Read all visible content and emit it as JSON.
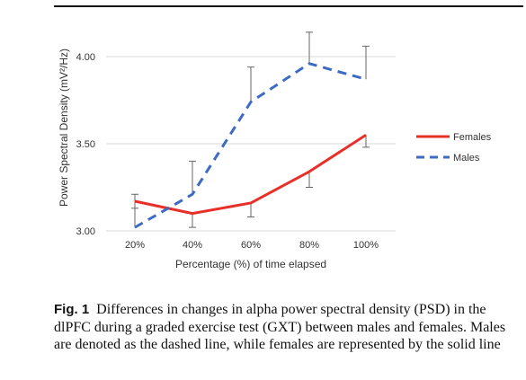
{
  "chart_data": {
    "type": "line",
    "categories": [
      "20%",
      "40%",
      "60%",
      "80%",
      "100%"
    ],
    "xlabel": "Percentage (%) of time elapsed",
    "ylabel": "Power Spectral Density (mV²/Hz)",
    "ylim": [
      3.0,
      4.0
    ],
    "yticks": [
      "3.00",
      "3.50",
      "4.00"
    ],
    "grid": true,
    "legend_position": "right",
    "series": [
      {
        "name": "Females",
        "style": "solid",
        "color": "#e8302a",
        "values": [
          3.17,
          3.1,
          3.16,
          3.34,
          3.55
        ],
        "error": [
          0.04,
          0.08,
          0.08,
          0.09,
          0.07
        ]
      },
      {
        "name": "Males",
        "style": "dashed",
        "color": "#3d6bc4",
        "values": [
          3.02,
          3.21,
          3.74,
          3.96,
          3.87
        ],
        "error": [
          0.19,
          0.19,
          0.2,
          0.18,
          0.19
        ]
      }
    ]
  },
  "caption": {
    "lead": "Fig. 1",
    "text": "Differences in changes in alpha power spectral density (PSD) in the dlPFC during a graded exercise test (GXT) between males and females. Males are denoted as the dashed line, while females are represented by the solid line"
  }
}
